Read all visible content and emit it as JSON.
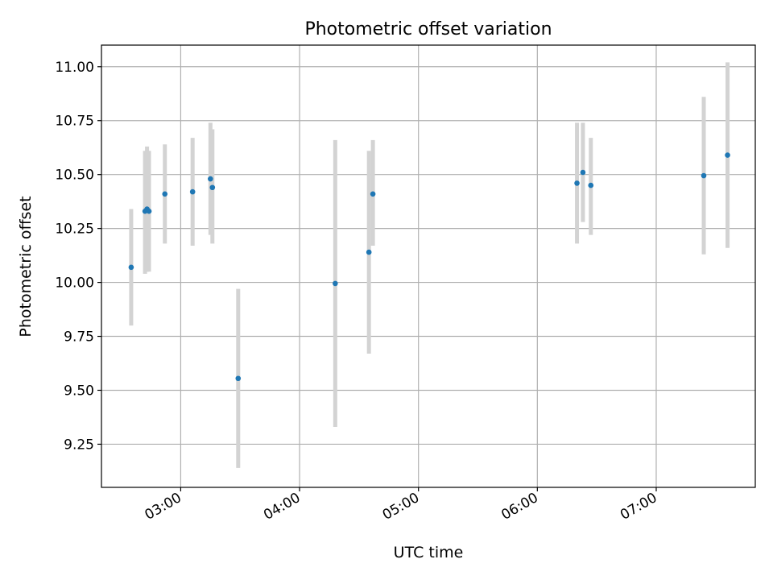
{
  "chart_data": {
    "type": "scatter",
    "title": "Photometric offset variation",
    "xlabel": "UTC time",
    "ylabel": "Photometric offset",
    "x_axis_kind": "time",
    "xlim": [
      "02:20",
      "07:50"
    ],
    "ylim": [
      9.05,
      11.1
    ],
    "xticks": [
      "03:00",
      "04:00",
      "05:00",
      "06:00",
      "07:00"
    ],
    "yticks": [
      "9.25",
      "9.50",
      "9.75",
      "10.00",
      "10.25",
      "10.50",
      "10.75",
      "11.00"
    ],
    "grid": true,
    "legend": "none",
    "series": [
      {
        "marker_color": "#1f77b4",
        "errorbar_color": "#d3d3d3",
        "points": [
          {
            "x": "02:35",
            "y": 10.07,
            "ylow": 9.8,
            "yhigh": 10.34
          },
          {
            "x": "02:42",
            "y": 10.33,
            "ylow": 10.04,
            "yhigh": 10.61
          },
          {
            "x": "02:43",
            "y": 10.34,
            "ylow": 10.05,
            "yhigh": 10.63
          },
          {
            "x": "02:44",
            "y": 10.33,
            "ylow": 10.05,
            "yhigh": 10.61
          },
          {
            "x": "02:52",
            "y": 10.41,
            "ylow": 10.18,
            "yhigh": 10.64
          },
          {
            "x": "03:06",
            "y": 10.42,
            "ylow": 10.17,
            "yhigh": 10.67
          },
          {
            "x": "03:15",
            "y": 10.48,
            "ylow": 10.22,
            "yhigh": 10.74
          },
          {
            "x": "03:16",
            "y": 10.44,
            "ylow": 10.18,
            "yhigh": 10.71
          },
          {
            "x": "03:29",
            "y": 9.555,
            "ylow": 9.14,
            "yhigh": 9.97
          },
          {
            "x": "04:18",
            "y": 9.995,
            "ylow": 9.33,
            "yhigh": 10.66
          },
          {
            "x": "04:35",
            "y": 10.14,
            "ylow": 9.67,
            "yhigh": 10.61
          },
          {
            "x": "04:37",
            "y": 10.41,
            "ylow": 10.17,
            "yhigh": 10.66
          },
          {
            "x": "06:20",
            "y": 10.46,
            "ylow": 10.18,
            "yhigh": 10.74
          },
          {
            "x": "06:23",
            "y": 10.51,
            "ylow": 10.28,
            "yhigh": 10.74
          },
          {
            "x": "06:27",
            "y": 10.45,
            "ylow": 10.22,
            "yhigh": 10.67
          },
          {
            "x": "07:24",
            "y": 10.495,
            "ylow": 10.13,
            "yhigh": 10.86
          },
          {
            "x": "07:36",
            "y": 10.59,
            "ylow": 10.16,
            "yhigh": 11.02
          }
        ]
      }
    ]
  }
}
